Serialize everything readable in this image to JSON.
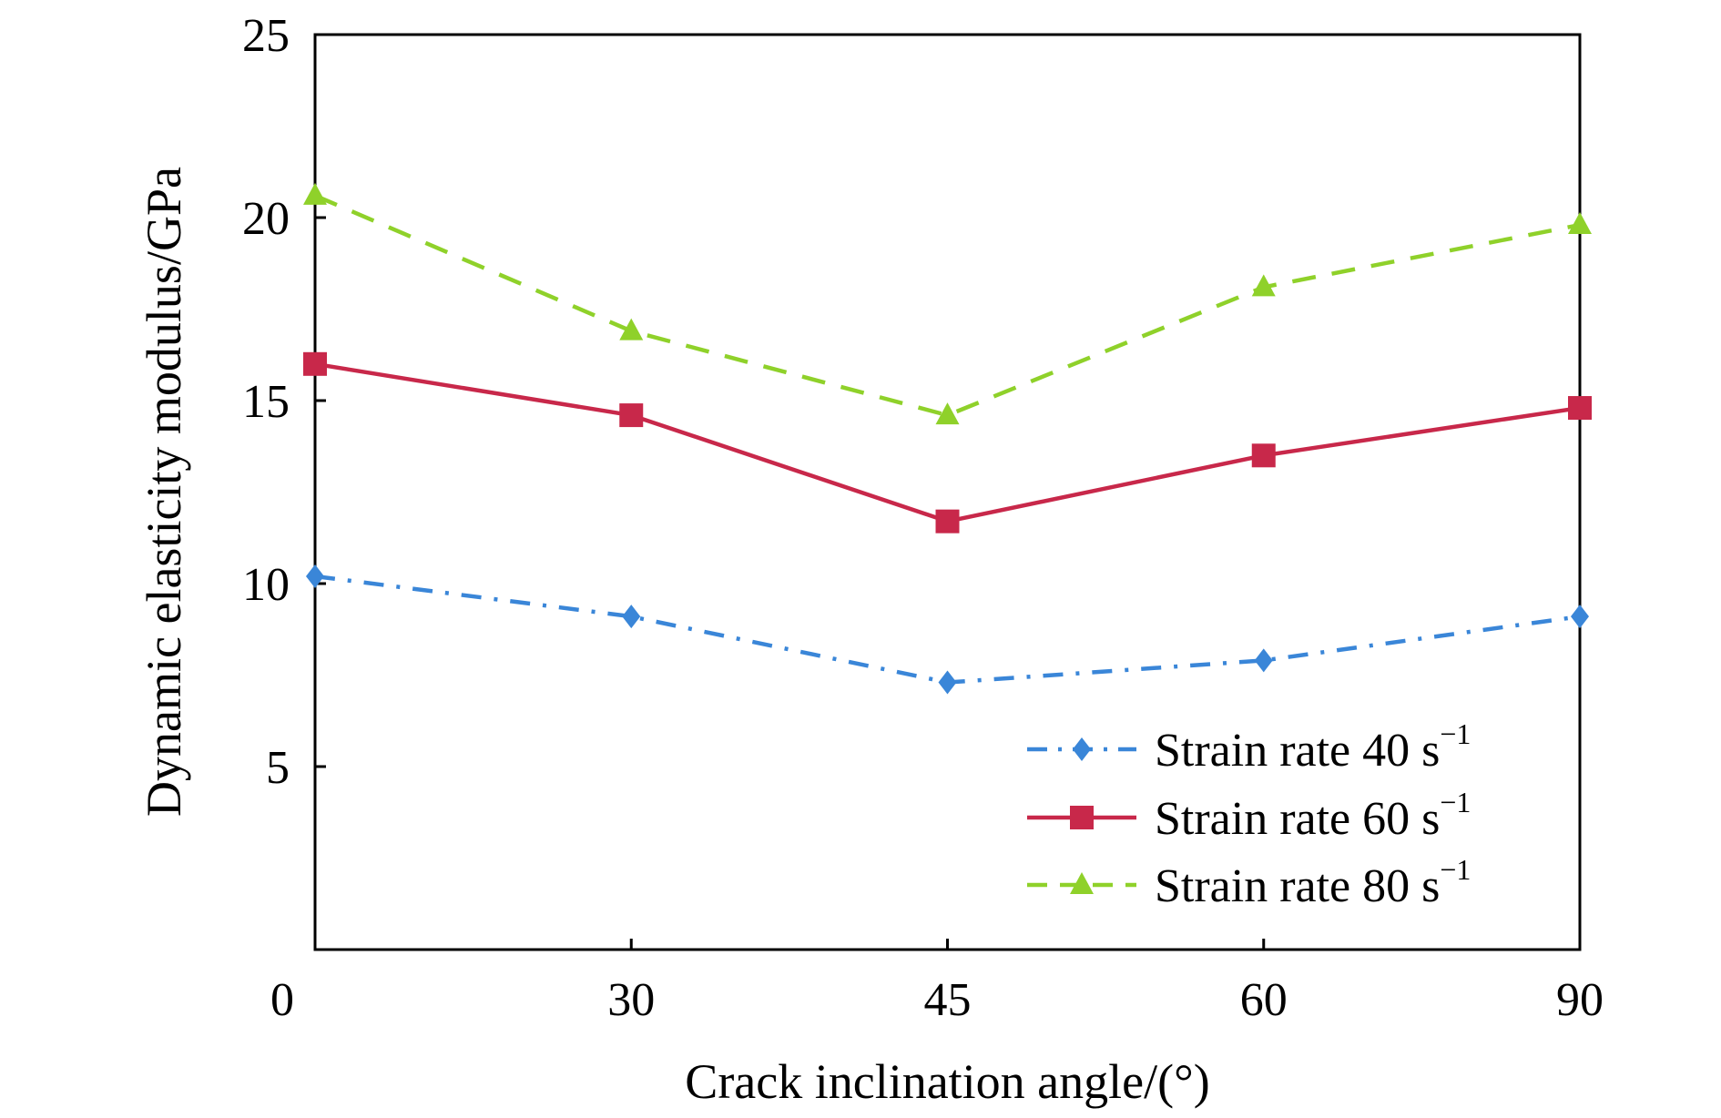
{
  "chart_data": {
    "type": "line",
    "xlabel": "Crack inclination angle/(°)",
    "ylabel": "Dynamic elasticity modulus/GPa",
    "categories": [
      "0",
      "30",
      "45",
      "60",
      "90"
    ],
    "ylim": [
      0,
      25
    ],
    "yticks": [
      5,
      10,
      15,
      20,
      25
    ],
    "grid": false,
    "legend_position": "bottom-right",
    "series": [
      {
        "name": "Strain rate 40 s",
        "name_superscript": "−1",
        "values": [
          10.2,
          9.1,
          7.3,
          7.9,
          9.1
        ],
        "color": "#3a86d8",
        "marker": "diamond",
        "dash": "dash-dot"
      },
      {
        "name": "Strain rate 60 s",
        "name_superscript": "−1",
        "values": [
          16.0,
          14.6,
          11.7,
          13.5,
          14.8
        ],
        "color": "#c8284a",
        "marker": "square",
        "dash": "solid"
      },
      {
        "name": "Strain rate 80 s",
        "name_superscript": "−1",
        "values": [
          20.6,
          16.9,
          14.6,
          18.1,
          19.8
        ],
        "color": "#8fd12a",
        "marker": "triangle",
        "dash": "dashed"
      }
    ]
  }
}
